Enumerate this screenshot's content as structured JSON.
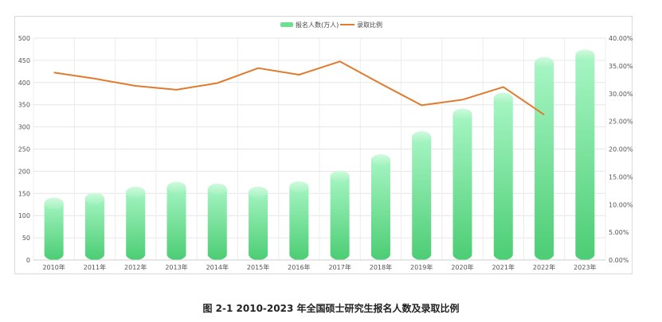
{
  "caption": "图 2-1 2010-2023 年全国硕士研究生报名人数及录取比例",
  "chart_data": {
    "type": "bar",
    "categories": [
      "2010年",
      "2011年",
      "2012年",
      "2013年",
      "2014年",
      "2015年",
      "2016年",
      "2017年",
      "2018年",
      "2019年",
      "2020年",
      "2021年",
      "2022年",
      "2023年"
    ],
    "series": [
      {
        "name": "报名人数(万人)",
        "kind": "bar",
        "axis": "left",
        "color": "#5dd886",
        "values": [
          140,
          151,
          165,
          176,
          172,
          165,
          177,
          201,
          238,
          290,
          341,
          377,
          457,
          474
        ]
      },
      {
        "name": "录取比例",
        "kind": "line",
        "axis": "right",
        "color": "#e07b2d",
        "values": [
          33.8,
          32.7,
          31.4,
          30.7,
          31.9,
          34.6,
          33.4,
          35.8,
          31.8,
          27.9,
          28.9,
          31.2,
          26.2,
          null
        ]
      }
    ],
    "y_left": {
      "min": 0,
      "max": 500,
      "ticks": [
        "0",
        "50",
        "100",
        "150",
        "200",
        "250",
        "300",
        "350",
        "400",
        "450",
        "500"
      ]
    },
    "y_right": {
      "min": 0,
      "max": 40,
      "ticks": [
        "0.00%",
        "5.00%",
        "10.00%",
        "15.00%",
        "20.00%",
        "25.00%",
        "30.00%",
        "35.00%",
        "40.00%"
      ]
    },
    "grid": true,
    "legend_position": "top-center"
  }
}
